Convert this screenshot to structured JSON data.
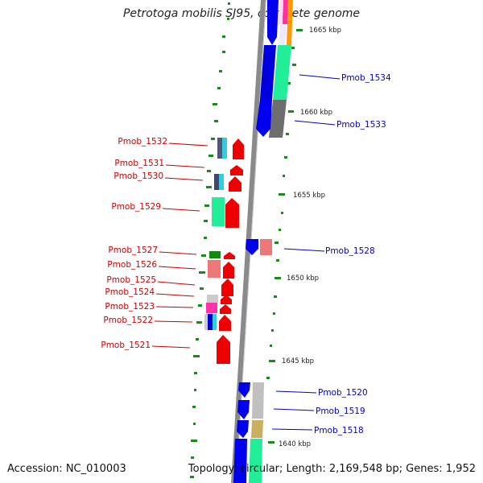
{
  "title": "Petrotoga mobilis SJ95, complete genome",
  "accession": "Accession: NC_010003",
  "topology": "Topology: circular; Length: 2,169,548 bp; Genes: 1,952",
  "scale_ticks": [
    "1665 kbp",
    "1660 kbp",
    "1655 kbp",
    "1650 kbp",
    "1645 kbp",
    "1640 kbp"
  ],
  "colors": {
    "left_label": "#cc0000",
    "right_label": "#0000cc",
    "backbone": "#8a8a8a",
    "gc_ticks": "#1a8a1a"
  },
  "genes_right": [
    "Pmob_1534",
    "Pmob_1533",
    "Pmob_1528",
    "Pmob_1520",
    "Pmob_1519",
    "Pmob_1518"
  ],
  "genes_left": [
    "Pmob_1532",
    "Pmob_1531",
    "Pmob_1530",
    "Pmob_1529",
    "Pmob_1527",
    "Pmob_1526",
    "Pmob_1525",
    "Pmob_1524",
    "Pmob_1523",
    "Pmob_1522",
    "Pmob_1521"
  ]
}
